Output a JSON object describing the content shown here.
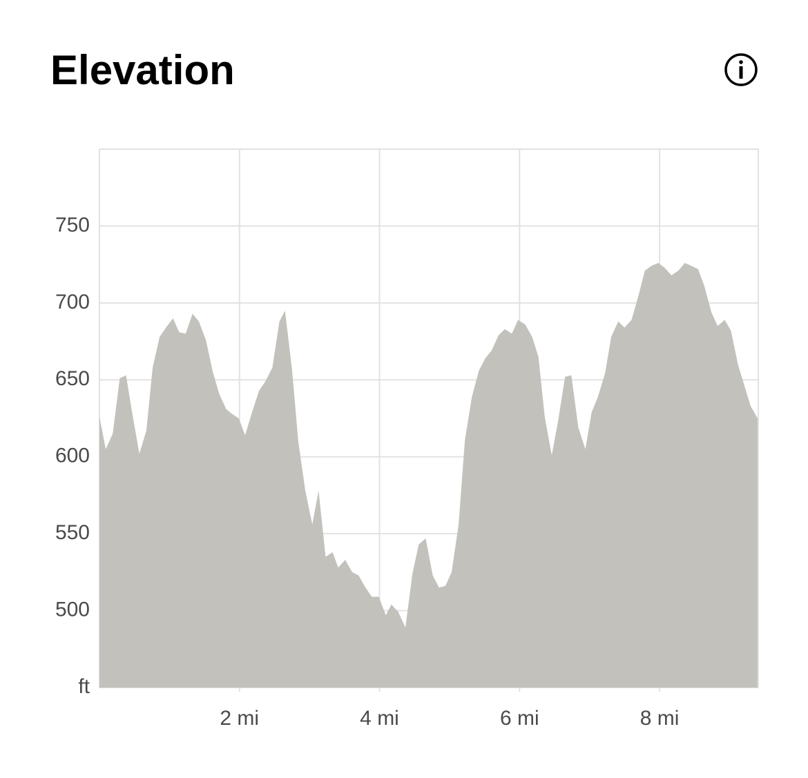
{
  "chart_data": {
    "type": "area",
    "title": "Elevation",
    "color": "#c2c1bc",
    "grid": true,
    "xlim": [
      0,
      9.41
    ],
    "ylim": [
      450,
      800
    ],
    "xticks": [
      {
        "value": 2,
        "label": "2 mi"
      },
      {
        "value": 4,
        "label": "4 mi"
      },
      {
        "value": 6,
        "label": "6 mi"
      },
      {
        "value": 8,
        "label": "8 mi"
      }
    ],
    "yticks": [
      {
        "value": 450,
        "label": "ft"
      },
      500,
      550,
      600,
      650,
      700,
      750
    ],
    "x": [
      0,
      0.09,
      0.19,
      0.29,
      0.38,
      0.47,
      0.57,
      0.67,
      0.76,
      0.86,
      0.95,
      1.05,
      1.14,
      1.23,
      1.33,
      1.42,
      1.52,
      1.62,
      1.71,
      1.81,
      1.89,
      1.99,
      2.08,
      2.18,
      2.28,
      2.37,
      2.47,
      2.57,
      2.65,
      2.75,
      2.84,
      2.94,
      3.04,
      3.13,
      3.23,
      3.33,
      3.41,
      3.51,
      3.61,
      3.7,
      3.8,
      3.89,
      3.99,
      4.09,
      4.17,
      4.27,
      4.37,
      4.47,
      4.56,
      4.66,
      4.76,
      4.85,
      4.94,
      5.03,
      5.13,
      5.22,
      5.32,
      5.42,
      5.51,
      5.6,
      5.7,
      5.79,
      5.89,
      5.98,
      6.08,
      6.18,
      6.27,
      6.36,
      6.46,
      6.55,
      6.65,
      6.74,
      6.84,
      6.94,
      7.03,
      7.12,
      7.22,
      7.31,
      7.41,
      7.5,
      7.6,
      7.7,
      7.79,
      7.88,
      7.98,
      8.07,
      8.17,
      8.27,
      8.36,
      8.46,
      8.55,
      8.64,
      8.74,
      8.83,
      8.93,
      9.02,
      9.12,
      9.22,
      9.3,
      9.4
    ],
    "y": [
      626,
      605,
      615,
      651,
      653,
      628,
      602,
      617,
      658,
      678,
      684,
      690,
      681,
      680,
      693,
      688,
      676,
      655,
      641,
      631,
      628,
      625,
      614,
      629,
      643,
      649,
      658,
      688,
      695,
      657,
      610,
      578,
      556,
      578,
      535,
      538,
      528,
      533,
      525,
      523,
      515,
      509,
      509,
      497,
      504,
      499,
      489,
      524,
      543,
      547,
      523,
      515,
      516,
      525,
      556,
      611,
      639,
      656,
      664,
      669,
      679,
      683,
      680,
      689,
      686,
      678,
      665,
      626,
      601,
      623,
      652,
      653,
      619,
      605,
      629,
      639,
      654,
      678,
      688,
      684,
      689,
      705,
      721,
      724,
      726,
      723,
      718,
      721,
      726,
      724,
      722,
      711,
      694,
      685,
      689,
      682,
      660,
      645,
      633,
      625
    ]
  }
}
